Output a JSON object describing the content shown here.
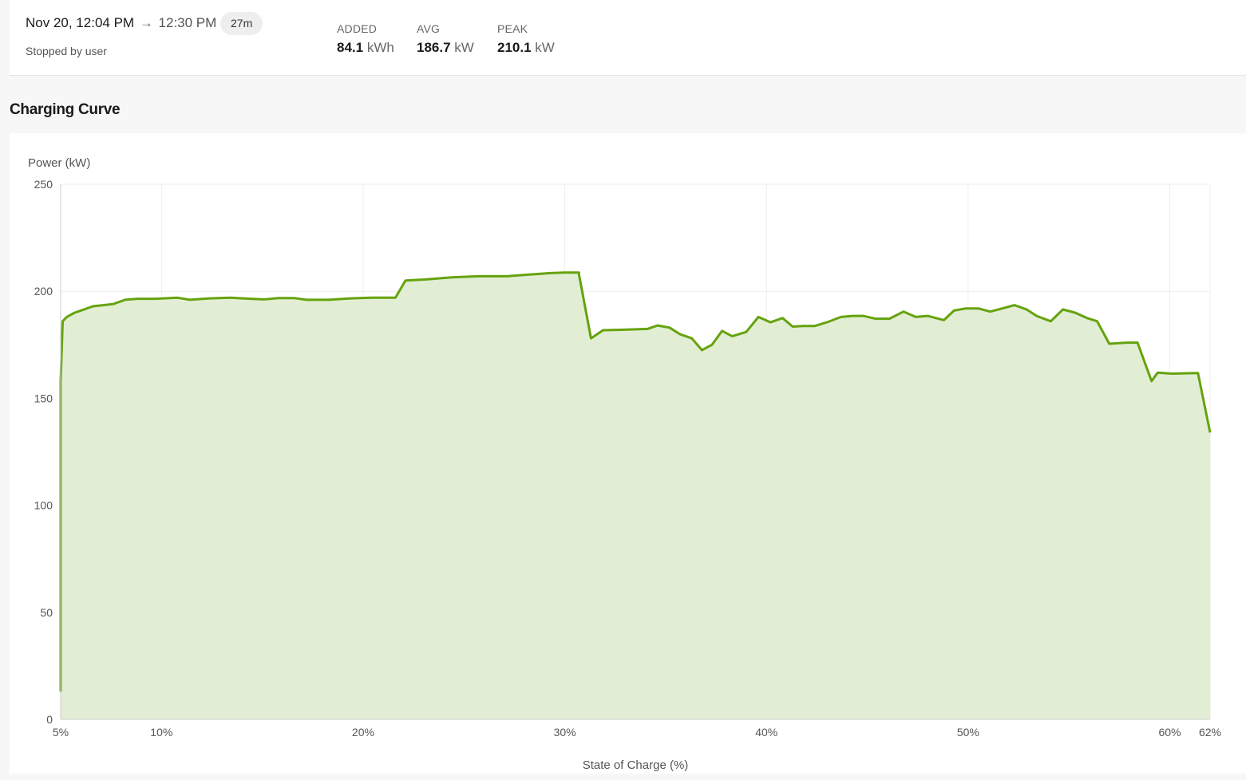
{
  "session": {
    "start": "Nov 20, 12:04 PM",
    "arrow": "→",
    "end": "12:30 PM",
    "duration": "27m",
    "status": "Stopped by user"
  },
  "stats": [
    {
      "label": "ADDED",
      "value": "84.1",
      "unit": "kWh"
    },
    {
      "label": "AVG",
      "value": "186.7",
      "unit": "kW"
    },
    {
      "label": "PEAK",
      "value": "210.1",
      "unit": "kW"
    }
  ],
  "section_title": "Charging Curve",
  "colors": {
    "line": "#65a30d",
    "fill": "#e2eed4",
    "grid": "#eeeeee",
    "axis": "#cccccc"
  },
  "chart_data": {
    "type": "area",
    "title": "",
    "xlabel": "State of Charge (%)",
    "ylabel": "Power (kW)",
    "xlim": [
      5,
      62
    ],
    "ylim": [
      0,
      250
    ],
    "grid": true,
    "legend": "none",
    "x_ticks": [
      5,
      10,
      20,
      30,
      40,
      50,
      60,
      62
    ],
    "x_tick_labels": [
      "5%",
      "10%",
      "20%",
      "30%",
      "40%",
      "50%",
      "60%",
      "62%"
    ],
    "y_ticks": [
      0,
      50,
      100,
      150,
      200,
      250
    ],
    "y_tick_labels": [
      "0",
      "50",
      "100",
      "150",
      "200",
      "250"
    ],
    "series": [
      {
        "points": [
          [
            5.0,
            13
          ],
          [
            5.0,
            158
          ],
          [
            5.1,
            186
          ],
          [
            5.3,
            188
          ],
          [
            5.7,
            190
          ],
          [
            6.0,
            191
          ],
          [
            6.6,
            193
          ],
          [
            7.6,
            194
          ],
          [
            8.2,
            196
          ],
          [
            8.8,
            196.5
          ],
          [
            9.7,
            196.5
          ],
          [
            10.8,
            197
          ],
          [
            11.4,
            196
          ],
          [
            12.4,
            196.7
          ],
          [
            13.4,
            197
          ],
          [
            14.4,
            196.5
          ],
          [
            15.1,
            196.2
          ],
          [
            15.8,
            196.8
          ],
          [
            16.6,
            196.8
          ],
          [
            17.2,
            196
          ],
          [
            18.3,
            196
          ],
          [
            19.4,
            196.7
          ],
          [
            20.4,
            197
          ],
          [
            21.1,
            197
          ],
          [
            21.6,
            197
          ],
          [
            22.1,
            205
          ],
          [
            23.1,
            205.5
          ],
          [
            24.4,
            206.5
          ],
          [
            25.7,
            207
          ],
          [
            27.1,
            207
          ],
          [
            28.1,
            207.7
          ],
          [
            29.3,
            208.5
          ],
          [
            30.0,
            208.7
          ],
          [
            30.7,
            208.7
          ],
          [
            30.7,
            208
          ],
          [
            31.3,
            178
          ],
          [
            31.9,
            181.8
          ],
          [
            32.8,
            182
          ],
          [
            34.1,
            182.4
          ],
          [
            34.6,
            184
          ],
          [
            35.2,
            183
          ],
          [
            35.7,
            180
          ],
          [
            36.3,
            178
          ],
          [
            36.8,
            172.5
          ],
          [
            37.3,
            175
          ],
          [
            37.8,
            181.5
          ],
          [
            38.3,
            179
          ],
          [
            39.0,
            181
          ],
          [
            39.6,
            188
          ],
          [
            40.2,
            185.5
          ],
          [
            40.8,
            187.5
          ],
          [
            41.3,
            183.5
          ],
          [
            41.8,
            183.8
          ],
          [
            42.4,
            183.8
          ],
          [
            43.0,
            185.5
          ],
          [
            43.7,
            188
          ],
          [
            44.3,
            188.5
          ],
          [
            44.8,
            188.5
          ],
          [
            45.4,
            187.2
          ],
          [
            46.1,
            187.2
          ],
          [
            46.8,
            190.5
          ],
          [
            47.4,
            188
          ],
          [
            48.0,
            188.5
          ],
          [
            48.8,
            186.5
          ],
          [
            49.3,
            191
          ],
          [
            49.9,
            192
          ],
          [
            50.5,
            192
          ],
          [
            51.1,
            190.5
          ],
          [
            51.7,
            192
          ],
          [
            52.3,
            193.5
          ],
          [
            52.9,
            191.5
          ],
          [
            53.4,
            188.5
          ],
          [
            54.1,
            186
          ],
          [
            54.7,
            191.5
          ],
          [
            55.3,
            190
          ],
          [
            55.9,
            187.5
          ],
          [
            56.4,
            186
          ],
          [
            57.0,
            175.5
          ],
          [
            57.9,
            176
          ],
          [
            58.4,
            176
          ],
          [
            59.1,
            158
          ],
          [
            59.4,
            162
          ],
          [
            60.1,
            161.5
          ],
          [
            60.9,
            161.7
          ],
          [
            61.4,
            161.8
          ],
          [
            62.0,
            134
          ]
        ]
      }
    ]
  }
}
